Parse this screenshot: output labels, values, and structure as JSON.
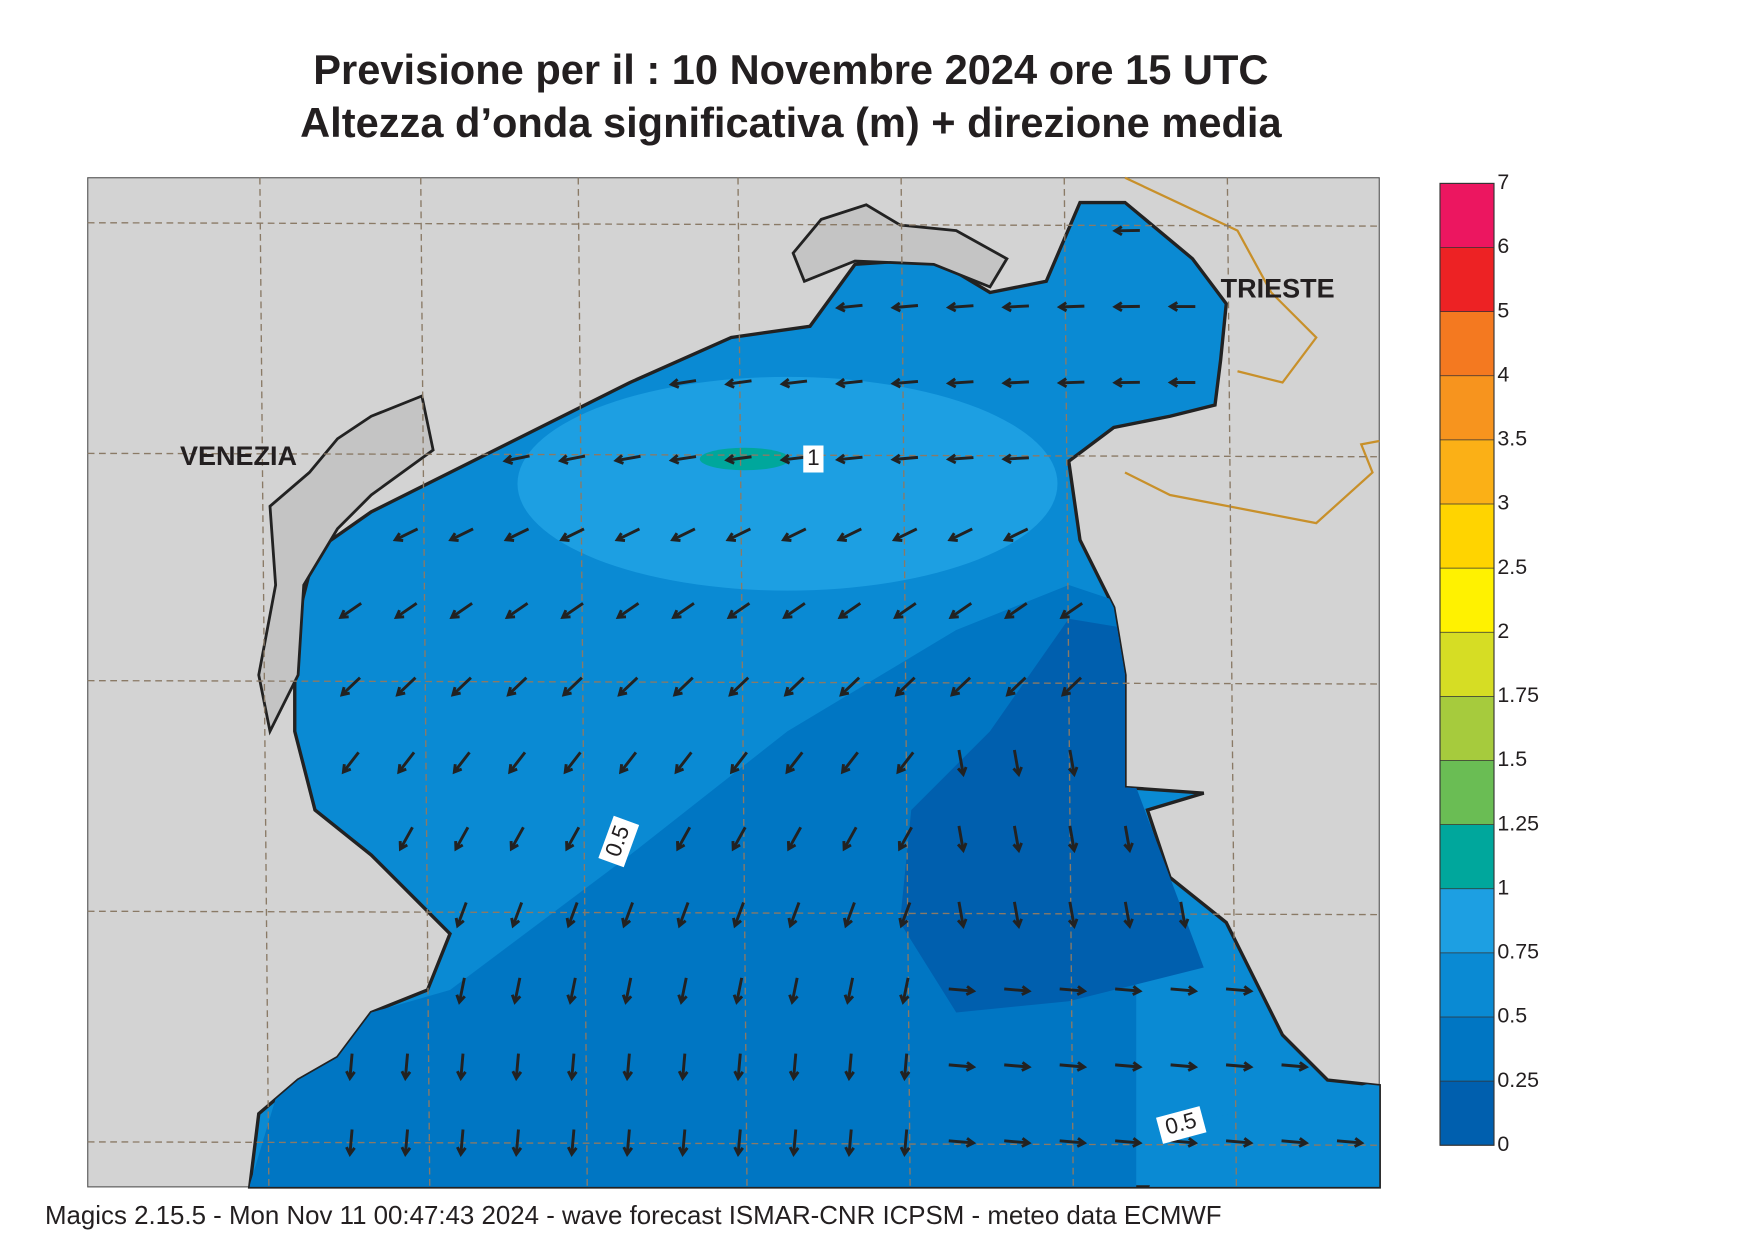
{
  "header": {
    "title": "Previsione per il  :  10 Novembre  2024   ore 15 UTC",
    "subtitle": "Altezza d’onda significativa (m) + direzione media"
  },
  "map": {
    "places": [
      "VENEZIA",
      "TRIESTE"
    ],
    "contour_labels": [
      "1",
      "0.5",
      "0.5"
    ]
  },
  "colorbar": {
    "levels": [
      0,
      0.25,
      0.5,
      0.75,
      1,
      1.25,
      1.5,
      1.75,
      2,
      2.5,
      3,
      3.5,
      4,
      5,
      6,
      7
    ],
    "colors": [
      "#005fae",
      "#0076c3",
      "#0a8ad3",
      "#1d9fe2",
      "#00a79c",
      "#6abd54",
      "#a6cb3d",
      "#d6dd24",
      "#fff200",
      "#ffd400",
      "#fbb016",
      "#f7941e",
      "#f47920",
      "#ed2224",
      "#ec1660"
    ]
  },
  "footer": "Magics 2.15.5 - Mon Nov 11 00:47:43 2024 - wave forecast  ISMAR-CNR  ICPSM - meteo data   ECMWF"
}
